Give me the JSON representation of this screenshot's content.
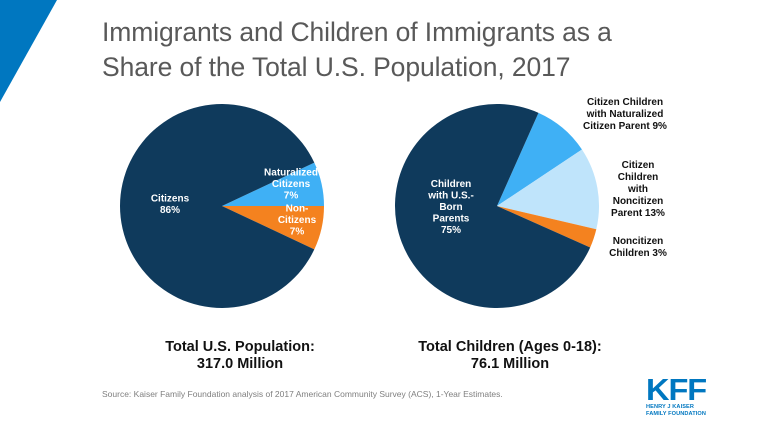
{
  "header": {
    "title_line1": "Immigrants and Children of Immigrants as a",
    "title_line2": "Share of the Total U.S. Population, 2017"
  },
  "colors": {
    "accent_triangle": "#0077C0",
    "navy": "#0F3A5C",
    "bright_blue": "#3FB0F5",
    "light_blue": "#BFE4FB",
    "orange": "#F4821F",
    "title_text": "#595959"
  },
  "chart_data": [
    {
      "type": "pie",
      "title": "Total U.S. Population: 317.0 Million",
      "total_label_line1": "Total U.S. Population:",
      "total_label_line2": "317.0 Million",
      "slices": [
        {
          "name": "Naturalized Citizens",
          "value": 7,
          "label_lines": [
            "Naturalized",
            "Citizens",
            "7%"
          ],
          "color": "#3FB0F5",
          "label_color": "#ffffff"
        },
        {
          "name": "Non-Citizens",
          "value": 7,
          "label_lines": [
            "Non-",
            "Citizens",
            "7%"
          ],
          "color": "#F4821F",
          "label_color": "#ffffff"
        },
        {
          "name": "Citizens",
          "value": 86,
          "label_lines": [
            "Citizens",
            "86%"
          ],
          "color": "#0F3A5C",
          "label_color": "#ffffff"
        }
      ]
    },
    {
      "type": "pie",
      "title": "Total Children (Ages 0-18): 76.1 Million",
      "total_label_line1": "Total Children (Ages 0-18):",
      "total_label_line2": "76.1 Million",
      "slices": [
        {
          "name": "Citizen Children with Naturalized Citizen Parent",
          "value": 9,
          "label_lines": [
            "Citizen Children",
            "with Naturalized",
            "Citizen Parent 9%"
          ],
          "color": "#3FB0F5",
          "label_color": "#111111"
        },
        {
          "name": "Citizen Children with Noncitizen Parent",
          "value": 13,
          "label_lines": [
            "Citizen",
            "Children",
            "with",
            "Noncitizen",
            "Parent 13%"
          ],
          "color": "#BFE4FB",
          "label_color": "#111111"
        },
        {
          "name": "Noncitizen Children",
          "value": 3,
          "label_lines": [
            "Noncitizen",
            "Children 3%"
          ],
          "color": "#F4821F",
          "label_color": "#111111"
        },
        {
          "name": "Children with U.S.-Born Parents",
          "value": 75,
          "label_lines": [
            "Children",
            "with U.S.-",
            "Born",
            "Parents",
            "75%"
          ],
          "color": "#0F3A5C",
          "label_color": "#ffffff"
        }
      ]
    }
  ],
  "footer": {
    "source": "Source: Kaiser Family Foundation analysis of 2017 American Community Survey (ACS), 1-Year Estimates."
  },
  "logo": {
    "mark": "KFF",
    "sub_line1": "HENRY J KAISER",
    "sub_line2": "FAMILY FOUNDATION"
  }
}
